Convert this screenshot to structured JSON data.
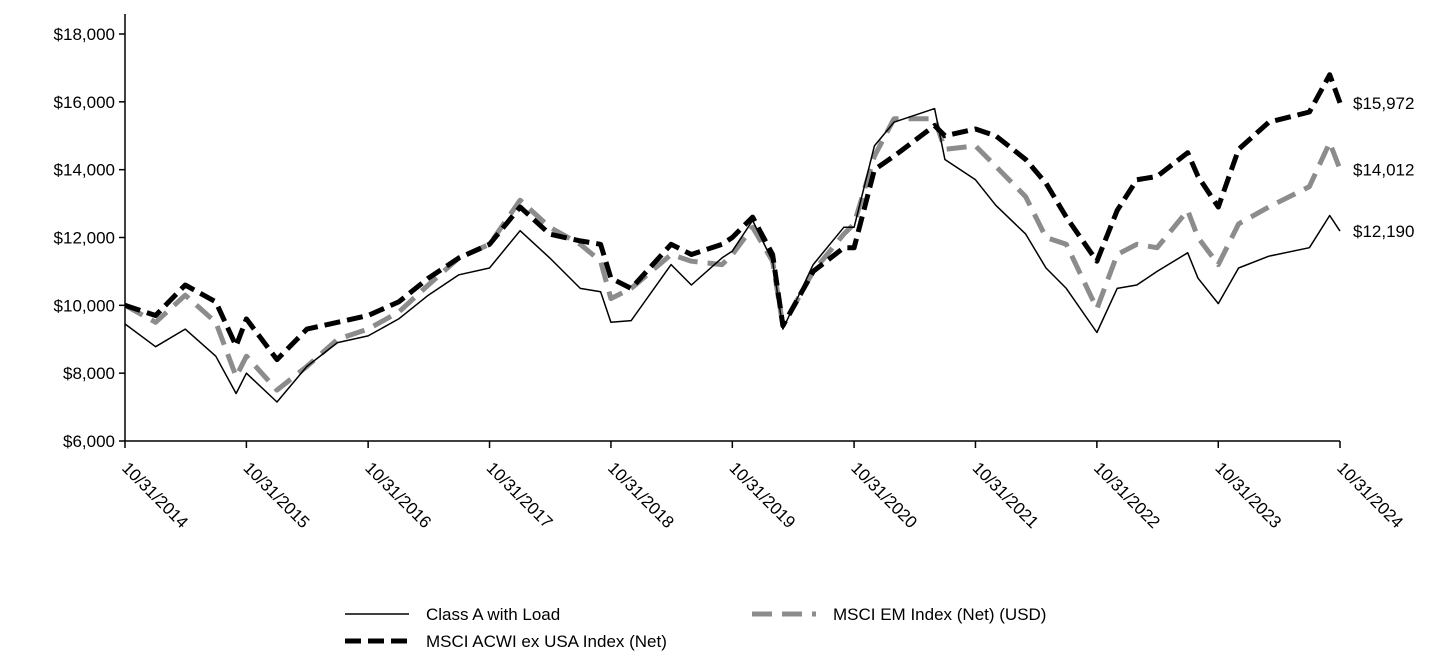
{
  "chart_data": {
    "type": "line",
    "title": "",
    "xlabel": "",
    "ylabel": "",
    "ylim": [
      6000,
      18000
    ],
    "y_ticks": [
      6000,
      8000,
      10000,
      12000,
      14000,
      16000,
      18000
    ],
    "y_tick_labels": [
      "$6,000",
      "$8,000",
      "$10,000",
      "$12,000",
      "$14,000",
      "$16,000",
      "$18,000"
    ],
    "x_start": "10/31/2014",
    "x_end": "10/31/2024",
    "x_ticks": [
      "10/31/2014",
      "10/31/2015",
      "10/31/2016",
      "10/31/2017",
      "10/31/2018",
      "10/31/2019",
      "10/31/2020",
      "10/31/2021",
      "10/31/2022",
      "10/31/2023",
      "10/31/2024"
    ],
    "grid": false,
    "legend_position": "bottom",
    "series": [
      {
        "name": "Class A with Load",
        "style": "solid-thin",
        "color": "#000000",
        "end_label": "$12,190",
        "points": [
          [
            "10/31/2014",
            9450
          ],
          [
            "1/31/2015",
            8780
          ],
          [
            "4/30/2015",
            9300
          ],
          [
            "7/31/2015",
            8500
          ],
          [
            "9/30/2015",
            7400
          ],
          [
            "10/31/2015",
            8000
          ],
          [
            "1/31/2016",
            7150
          ],
          [
            "4/30/2016",
            8200
          ],
          [
            "7/31/2016",
            8900
          ],
          [
            "10/31/2016",
            9100
          ],
          [
            "1/31/2017",
            9600
          ],
          [
            "4/30/2017",
            10300
          ],
          [
            "7/31/2017",
            10900
          ],
          [
            "10/31/2017",
            11100
          ],
          [
            "1/31/2018",
            12200
          ],
          [
            "4/30/2018",
            11400
          ],
          [
            "7/31/2018",
            10500
          ],
          [
            "9/30/2018",
            10400
          ],
          [
            "10/31/2018",
            9500
          ],
          [
            "12/31/2018",
            9550
          ],
          [
            "4/30/2019",
            11200
          ],
          [
            "6/30/2019",
            10600
          ],
          [
            "9/30/2019",
            11400
          ],
          [
            "10/31/2019",
            11600
          ],
          [
            "12/31/2019",
            12500
          ],
          [
            "2/29/2020",
            11300
          ],
          [
            "3/31/2020",
            9300
          ],
          [
            "6/30/2020",
            11200
          ],
          [
            "9/30/2020",
            12300
          ],
          [
            "10/31/2020",
            12300
          ],
          [
            "12/31/2020",
            14700
          ],
          [
            "2/28/2021",
            15400
          ],
          [
            "6/30/2021",
            15800
          ],
          [
            "7/31/2021",
            14300
          ],
          [
            "10/31/2021",
            13700
          ],
          [
            "12/31/2021",
            12950
          ],
          [
            "3/31/2022",
            12100
          ],
          [
            "5/31/2022",
            11100
          ],
          [
            "7/31/2022",
            10500
          ],
          [
            "10/31/2022",
            9200
          ],
          [
            "12/31/2022",
            10500
          ],
          [
            "2/28/2023",
            10600
          ],
          [
            "4/30/2023",
            11000
          ],
          [
            "7/31/2023",
            11550
          ],
          [
            "8/31/2023",
            10800
          ],
          [
            "10/31/2023",
            10050
          ],
          [
            "12/31/2023",
            11100
          ],
          [
            "3/31/2024",
            11450
          ],
          [
            "7/31/2024",
            11700
          ],
          [
            "9/30/2024",
            12650
          ],
          [
            "10/31/2024",
            12190
          ]
        ]
      },
      {
        "name": "MSCI ACWI ex USA Index (Net)",
        "style": "dashed-thick",
        "color": "#000000",
        "end_label": "$15,972",
        "points": [
          [
            "10/31/2014",
            10000
          ],
          [
            "1/31/2015",
            9700
          ],
          [
            "4/30/2015",
            10600
          ],
          [
            "7/31/2015",
            10100
          ],
          [
            "9/30/2015",
            8800
          ],
          [
            "10/31/2015",
            9600
          ],
          [
            "1/31/2016",
            8400
          ],
          [
            "4/30/2016",
            9300
          ],
          [
            "7/31/2016",
            9500
          ],
          [
            "10/31/2016",
            9700
          ],
          [
            "1/31/2017",
            10100
          ],
          [
            "4/30/2017",
            10800
          ],
          [
            "7/31/2017",
            11400
          ],
          [
            "10/31/2017",
            11800
          ],
          [
            "1/31/2018",
            12900
          ],
          [
            "4/30/2018",
            12100
          ],
          [
            "7/31/2018",
            11900
          ],
          [
            "9/30/2018",
            11800
          ],
          [
            "10/31/2018",
            10800
          ],
          [
            "12/31/2018",
            10500
          ],
          [
            "4/30/2019",
            11800
          ],
          [
            "6/30/2019",
            11500
          ],
          [
            "9/30/2019",
            11800
          ],
          [
            "10/31/2019",
            12000
          ],
          [
            "12/31/2019",
            12600
          ],
          [
            "2/29/2020",
            11500
          ],
          [
            "3/31/2020",
            9400
          ],
          [
            "6/30/2020",
            11000
          ],
          [
            "9/30/2020",
            11700
          ],
          [
            "10/31/2020",
            11700
          ],
          [
            "12/31/2020",
            14000
          ],
          [
            "2/28/2021",
            14400
          ],
          [
            "6/30/2021",
            15300
          ],
          [
            "7/31/2021",
            15000
          ],
          [
            "10/31/2021",
            15200
          ],
          [
            "12/31/2021",
            15000
          ],
          [
            "3/31/2022",
            14300
          ],
          [
            "5/31/2022",
            13600
          ],
          [
            "7/31/2022",
            12600
          ],
          [
            "10/31/2022",
            11300
          ],
          [
            "12/31/2022",
            12800
          ],
          [
            "2/28/2023",
            13700
          ],
          [
            "4/30/2023",
            13800
          ],
          [
            "7/31/2023",
            14500
          ],
          [
            "8/31/2023",
            13800
          ],
          [
            "10/31/2023",
            12900
          ],
          [
            "12/31/2023",
            14600
          ],
          [
            "3/31/2024",
            15400
          ],
          [
            "7/31/2024",
            15700
          ],
          [
            "9/30/2024",
            16800
          ],
          [
            "10/31/2024",
            15972
          ]
        ]
      },
      {
        "name": "MSCI EM Index (Net) (USD)",
        "style": "dashed-gray",
        "color": "#8c8c8c",
        "end_label": "$14,012",
        "points": [
          [
            "10/31/2014",
            10000
          ],
          [
            "1/31/2015",
            9500
          ],
          [
            "4/30/2015",
            10300
          ],
          [
            "7/31/2015",
            9500
          ],
          [
            "9/30/2015",
            7900
          ],
          [
            "10/31/2015",
            8500
          ],
          [
            "1/31/2016",
            7500
          ],
          [
            "4/30/2016",
            8200
          ],
          [
            "7/31/2016",
            9000
          ],
          [
            "10/31/2016",
            9300
          ],
          [
            "1/31/2017",
            9800
          ],
          [
            "4/30/2017",
            10600
          ],
          [
            "7/31/2017",
            11400
          ],
          [
            "10/31/2017",
            11800
          ],
          [
            "1/31/2018",
            13100
          ],
          [
            "4/30/2018",
            12300
          ],
          [
            "7/31/2018",
            11800
          ],
          [
            "9/30/2018",
            11300
          ],
          [
            "10/31/2018",
            10200
          ],
          [
            "12/31/2018",
            10500
          ],
          [
            "4/30/2019",
            11500
          ],
          [
            "6/30/2019",
            11300
          ],
          [
            "9/30/2019",
            11200
          ],
          [
            "10/31/2019",
            11500
          ],
          [
            "12/31/2019",
            12300
          ],
          [
            "2/29/2020",
            11300
          ],
          [
            "3/31/2020",
            9400
          ],
          [
            "6/30/2020",
            11000
          ],
          [
            "9/30/2020",
            12100
          ],
          [
            "10/31/2020",
            12400
          ],
          [
            "12/31/2020",
            14400
          ],
          [
            "2/28/2021",
            15500
          ],
          [
            "6/30/2021",
            15500
          ],
          [
            "7/31/2021",
            14600
          ],
          [
            "10/31/2021",
            14700
          ],
          [
            "12/31/2021",
            14100
          ],
          [
            "3/31/2022",
            13200
          ],
          [
            "5/31/2022",
            12000
          ],
          [
            "7/31/2022",
            11800
          ],
          [
            "10/31/2022",
            9900
          ],
          [
            "12/31/2022",
            11500
          ],
          [
            "2/28/2023",
            11800
          ],
          [
            "4/30/2023",
            11700
          ],
          [
            "7/31/2023",
            12800
          ],
          [
            "8/31/2023",
            12000
          ],
          [
            "10/31/2023",
            11200
          ],
          [
            "12/31/2023",
            12400
          ],
          [
            "3/31/2024",
            12900
          ],
          [
            "7/31/2024",
            13500
          ],
          [
            "9/30/2024",
            14800
          ],
          [
            "10/31/2024",
            14012
          ]
        ]
      }
    ],
    "legend": [
      {
        "name": "Class A with Load",
        "style": "solid-thin",
        "color": "#000000"
      },
      {
        "name": "MSCI EM Index (Net) (USD)",
        "style": "dashed-gray",
        "color": "#8c8c8c"
      },
      {
        "name": "MSCI ACWI ex USA Index (Net)",
        "style": "dashed-thick",
        "color": "#000000"
      }
    ]
  }
}
